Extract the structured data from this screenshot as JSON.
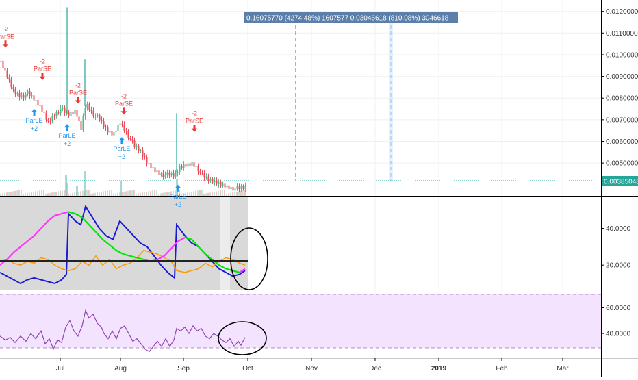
{
  "measure_label": "0.16075770 (4274.48%) 1607577  0.03046618 (810.08%) 3046618",
  "price_last_label": "0.00385048",
  "colors": {
    "up": "#53b987",
    "down": "#eb4d5c",
    "buy_arrow": "#2196f3",
    "sell_arrow": "#e53935",
    "adx": "#1a1ad6",
    "di_minus": "#ff9800",
    "di_plus_up": "#00e600",
    "di_plus_down": "#ff33ff",
    "rsi": "#8e44ad",
    "rsi_band": "#f0dcff",
    "measure_bg": "#5c7faa"
  },
  "chart_data": [
    {
      "type": "candlestick",
      "panel": "price",
      "x_ticks": [
        "Jul",
        "Aug",
        "Sep",
        "Oct",
        "Nov",
        "Dec",
        "2019",
        "Feb",
        "Mar"
      ],
      "y_ticks": [
        "0.01200000",
        "0.01100000",
        "0.01000000",
        "0.00900000",
        "0.00800000",
        "0.00700000",
        "0.00600000",
        "0.00500000",
        "0.00385048"
      ],
      "y_tick_values": [
        0.012,
        0.011,
        0.01,
        0.009,
        0.008,
        0.007,
        0.006,
        0.005,
        0.00385048
      ],
      "ylim": [
        0.00355,
        0.0124
      ],
      "close_trend": [
        [
          0,
          0.0097
        ],
        [
          10,
          0.009
        ],
        [
          20,
          0.0083
        ],
        [
          30,
          0.0081
        ],
        [
          40,
          0.0082
        ],
        [
          50,
          0.0079
        ],
        [
          60,
          0.0075
        ],
        [
          70,
          0.0069
        ],
        [
          80,
          0.0073
        ],
        [
          88,
          0.0075
        ],
        [
          95,
          0.0073
        ],
        [
          100,
          0.0072
        ],
        [
          110,
          0.0074
        ],
        [
          118,
          0.0066
        ],
        [
          125,
          0.0078
        ],
        [
          135,
          0.0073
        ],
        [
          145,
          0.007
        ],
        [
          155,
          0.0065
        ],
        [
          165,
          0.0063
        ],
        [
          175,
          0.0069
        ],
        [
          185,
          0.0064
        ],
        [
          195,
          0.0058
        ],
        [
          205,
          0.0055
        ],
        [
          215,
          0.005
        ],
        [
          225,
          0.0047
        ],
        [
          235,
          0.0045
        ],
        [
          245,
          0.00445
        ],
        [
          255,
          0.0044
        ],
        [
          262,
          0.0048
        ],
        [
          270,
          0.0049
        ],
        [
          280,
          0.005
        ],
        [
          288,
          0.0048
        ],
        [
          295,
          0.0044
        ],
        [
          305,
          0.0042
        ],
        [
          315,
          0.0041
        ],
        [
          325,
          0.004
        ],
        [
          335,
          0.0039
        ],
        [
          345,
          0.0038
        ],
        [
          358,
          0.00385
        ]
      ],
      "spikes": [
        {
          "x": 98,
          "high": 0.0122
        },
        {
          "x": 124,
          "high": 0.0098
        },
        {
          "x": 258,
          "high": 0.0073
        }
      ],
      "signals": [
        {
          "dir": "sell",
          "x": 8,
          "y": 0.0104,
          "label": "ParSE",
          "qty": "-2"
        },
        {
          "dir": "sell",
          "x": 62,
          "y": 0.0089,
          "label": "ParSE",
          "qty": "-2"
        },
        {
          "dir": "buy",
          "x": 50,
          "y": 0.0075,
          "label": "ParLE",
          "qty": "+2"
        },
        {
          "dir": "sell",
          "x": 114,
          "y": 0.0078,
          "label": "ParSE",
          "qty": "-2"
        },
        {
          "dir": "buy",
          "x": 98,
          "y": 0.0068,
          "label": "ParLE",
          "qty": "+2"
        },
        {
          "dir": "sell",
          "x": 181,
          "y": 0.0073,
          "label": "ParSE",
          "qty": "-2"
        },
        {
          "dir": "buy",
          "x": 178,
          "y": 0.0062,
          "label": "ParLE",
          "qty": "+2"
        },
        {
          "dir": "sell",
          "x": 284,
          "y": 0.0065,
          "label": "ParSE",
          "qty": "-2"
        },
        {
          "dir": "buy",
          "x": 260,
          "y": 0.004,
          "label": "ParLE",
          "qty": "+2"
        }
      ],
      "volume_bars": [
        {
          "x": 96,
          "v": 0.5
        },
        {
          "x": 98,
          "v": 0.3
        },
        {
          "x": 112,
          "v": 0.25
        },
        {
          "x": 124,
          "v": 0.6
        },
        {
          "x": 176,
          "v": 0.35
        },
        {
          "x": 258,
          "v": 0.4
        }
      ]
    },
    {
      "type": "line",
      "panel": "dmi",
      "y_ticks": [
        "40.0000",
        "20.0000"
      ],
      "y_tick_values": [
        40,
        20
      ],
      "ylim": [
        7,
        57
      ],
      "series": [
        {
          "key": "adx",
          "values": [
            [
              0,
              16
            ],
            [
              10,
              14
            ],
            [
              20,
              12
            ],
            [
              30,
              10
            ],
            [
              40,
              12
            ],
            [
              50,
              13
            ],
            [
              60,
              12
            ],
            [
              70,
              11
            ],
            [
              80,
              10
            ],
            [
              90,
              12
            ],
            [
              97,
              15
            ],
            [
              100,
              48
            ],
            [
              110,
              44
            ],
            [
              118,
              42
            ],
            [
              125,
              52
            ],
            [
              135,
              46
            ],
            [
              145,
              40
            ],
            [
              155,
              36
            ],
            [
              165,
              34
            ],
            [
              175,
              44
            ],
            [
              185,
              40
            ],
            [
              195,
              36
            ],
            [
              205,
              32
            ],
            [
              215,
              30
            ],
            [
              225,
              25
            ],
            [
              235,
              20
            ],
            [
              245,
              16
            ],
            [
              255,
              13
            ],
            [
              258,
              42
            ],
            [
              270,
              36
            ],
            [
              280,
              32
            ],
            [
              290,
              30
            ],
            [
              300,
              26
            ],
            [
              310,
              22
            ],
            [
              320,
              18
            ],
            [
              330,
              16
            ],
            [
              340,
              14
            ],
            [
              350,
              15
            ],
            [
              358,
              17
            ]
          ]
        },
        {
          "key": "di_minus",
          "values": [
            [
              0,
              22
            ],
            [
              10,
              23
            ],
            [
              20,
              21
            ],
            [
              30,
              20
            ],
            [
              40,
              22
            ],
            [
              50,
              21
            ],
            [
              60,
              24
            ],
            [
              70,
              23
            ],
            [
              80,
              20
            ],
            [
              90,
              18
            ],
            [
              100,
              17
            ],
            [
              110,
              18
            ],
            [
              120,
              22
            ],
            [
              130,
              20
            ],
            [
              140,
              25
            ],
            [
              150,
              20
            ],
            [
              160,
              23
            ],
            [
              170,
              18
            ],
            [
              180,
              20
            ],
            [
              190,
              21
            ],
            [
              200,
              24
            ],
            [
              210,
              28
            ],
            [
              220,
              27
            ],
            [
              230,
              26
            ],
            [
              240,
              24
            ],
            [
              250,
              22
            ],
            [
              258,
              17
            ],
            [
              270,
              16
            ],
            [
              280,
              17
            ],
            [
              290,
              18
            ],
            [
              300,
              21
            ],
            [
              310,
              19
            ],
            [
              320,
              22
            ],
            [
              330,
              24
            ],
            [
              340,
              23
            ],
            [
              350,
              21
            ],
            [
              358,
              20
            ]
          ]
        },
        {
          "key": "di_plus",
          "values": [
            [
              0,
              20
            ],
            [
              10,
              23
            ],
            [
              20,
              27
            ],
            [
              30,
              30
            ],
            [
              40,
              33
            ],
            [
              50,
              36
            ],
            [
              60,
              40
            ],
            [
              70,
              44
            ],
            [
              80,
              47
            ],
            [
              90,
              48
            ],
            [
              100,
              49
            ],
            [
              110,
              48
            ],
            [
              120,
              46
            ],
            [
              130,
              42
            ],
            [
              140,
              38
            ],
            [
              150,
              34
            ],
            [
              160,
              31
            ],
            [
              170,
              28
            ],
            [
              180,
              26
            ],
            [
              190,
              25
            ],
            [
              200,
              24
            ],
            [
              210,
              23
            ],
            [
              220,
              22
            ],
            [
              230,
              23
            ],
            [
              240,
              25
            ],
            [
              250,
              29
            ],
            [
              260,
              33
            ],
            [
              270,
              35
            ],
            [
              280,
              34
            ],
            [
              290,
              30
            ],
            [
              300,
              26
            ],
            [
              310,
              23
            ],
            [
              320,
              20
            ],
            [
              330,
              18
            ],
            [
              340,
              17
            ],
            [
              350,
              16
            ],
            [
              358,
              18
            ]
          ]
        }
      ]
    },
    {
      "type": "line",
      "panel": "rsi",
      "y_ticks": [
        "60.0000",
        "40.0000"
      ],
      "y_tick_values": [
        60,
        40
      ],
      "ylim": [
        22,
        73
      ],
      "band": [
        30,
        70
      ],
      "series": [
        {
          "key": "rsi",
          "values": [
            [
              0,
              38
            ],
            [
              8,
              35
            ],
            [
              15,
              37
            ],
            [
              22,
              33
            ],
            [
              30,
              38
            ],
            [
              38,
              34
            ],
            [
              45,
              40
            ],
            [
              52,
              36
            ],
            [
              60,
              42
            ],
            [
              66,
              32
            ],
            [
              72,
              36
            ],
            [
              78,
              28
            ],
            [
              84,
              35
            ],
            [
              90,
              33
            ],
            [
              96,
              45
            ],
            [
              102,
              50
            ],
            [
              108,
              42
            ],
            [
              114,
              38
            ],
            [
              120,
              46
            ],
            [
              125,
              58
            ],
            [
              130,
              52
            ],
            [
              136,
              55
            ],
            [
              142,
              48
            ],
            [
              148,
              45
            ],
            [
              152,
              40
            ],
            [
              158,
              36
            ],
            [
              164,
              42
            ],
            [
              170,
              36
            ],
            [
              176,
              44
            ],
            [
              182,
              46
            ],
            [
              188,
              40
            ],
            [
              194,
              34
            ],
            [
              200,
              36
            ],
            [
              206,
              32
            ],
            [
              212,
              28
            ],
            [
              218,
              26
            ],
            [
              224,
              30
            ],
            [
              230,
              34
            ],
            [
              236,
              30
            ],
            [
              242,
              36
            ],
            [
              248,
              30
            ],
            [
              254,
              35
            ],
            [
              258,
              44
            ],
            [
              264,
              42
            ],
            [
              270,
              45
            ],
            [
              276,
              40
            ],
            [
              282,
              46
            ],
            [
              288,
              42
            ],
            [
              294,
              44
            ],
            [
              300,
              38
            ],
            [
              306,
              36
            ],
            [
              312,
              40
            ],
            [
              318,
              38
            ],
            [
              324,
              35
            ],
            [
              330,
              33
            ],
            [
              336,
              36
            ],
            [
              342,
              30
            ],
            [
              348,
              34
            ],
            [
              352,
              31
            ],
            [
              358,
              37
            ]
          ]
        }
      ]
    }
  ]
}
